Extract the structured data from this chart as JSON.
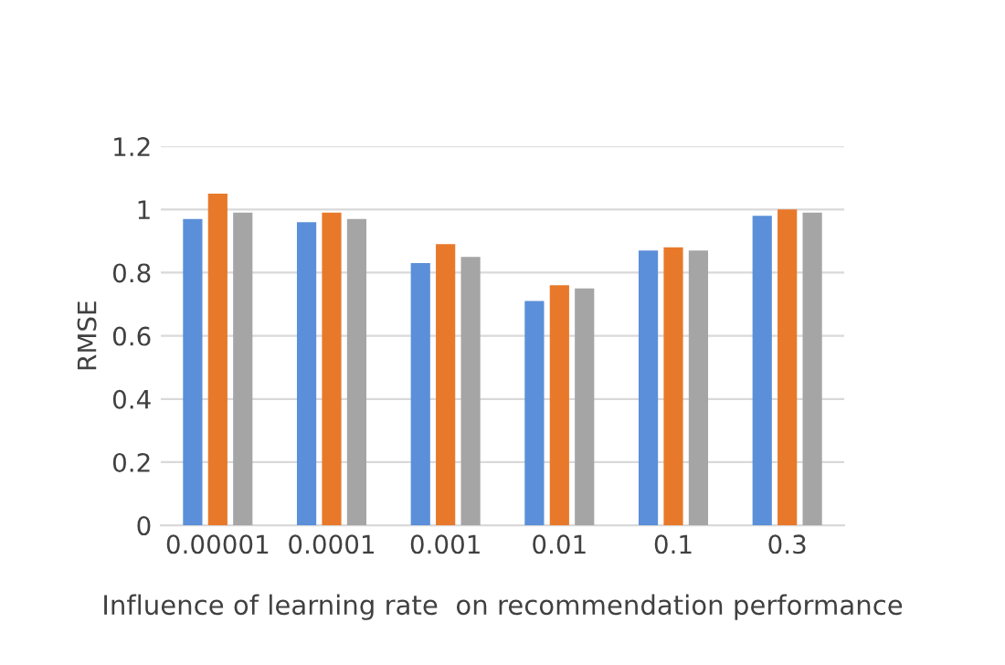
{
  "chart_data": {
    "type": "bar",
    "xlabel": "Influence of learning rate  on recommendation performance",
    "ylabel": "RMSE",
    "categories": [
      "0.00001",
      "0.0001",
      "0.001",
      "0.01",
      "0.1",
      "0.3"
    ],
    "series": [
      {
        "color": "#5b8fd9",
        "values": [
          0.97,
          0.96,
          0.83,
          0.71,
          0.87,
          0.98
        ]
      },
      {
        "color": "#e8792a",
        "values": [
          1.05,
          0.99,
          0.89,
          0.76,
          0.88,
          1.0
        ]
      },
      {
        "color": "#a5a5a5",
        "values": [
          0.99,
          0.97,
          0.85,
          0.75,
          0.87,
          0.99
        ]
      }
    ],
    "ylim": [
      0,
      1.2
    ],
    "yticks": [
      0,
      0.2,
      0.4,
      0.6,
      0.8,
      1,
      1.2
    ],
    "grid": "y"
  }
}
